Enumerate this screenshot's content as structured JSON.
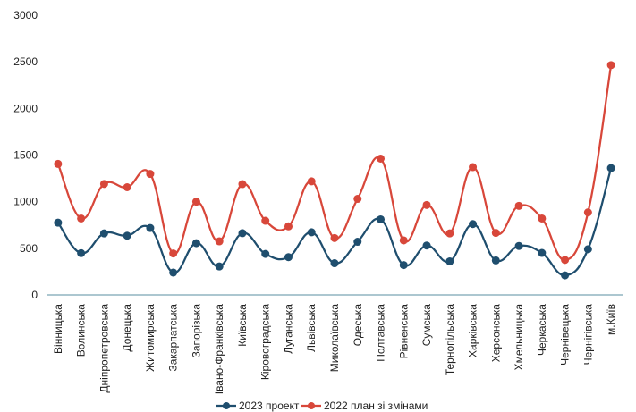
{
  "chart_data": {
    "type": "line",
    "categories": [
      "Вінницька",
      "Волинська",
      "Дніпропетровська",
      "Донецька",
      "Житомирська",
      "Закарпатська",
      "Запорізька",
      "Івано-Франківська",
      "Київська",
      "Кіровоградська",
      "Луганська",
      "Львівська",
      "Миколаївська",
      "Одеська",
      "Полтавська",
      "Рівненська",
      "Сумська",
      "Тернопільська",
      "Харківська",
      "Херсонська",
      "Хмельницька",
      "Черкаська",
      "Чернівецька",
      "Чернігівська",
      "м.Київ"
    ],
    "series": [
      {
        "name": "2023 проект",
        "color": "#1f4e6e",
        "values": [
          775,
          448,
          660,
          635,
          718,
          240,
          555,
          305,
          662,
          440,
          405,
          672,
          340,
          570,
          810,
          320,
          530,
          360,
          760,
          370,
          525,
          450,
          210,
          490,
          1360
        ]
      },
      {
        "name": "2022 план зі змінами",
        "color": "#d8473a",
        "values": [
          1405,
          820,
          1190,
          1155,
          1298,
          445,
          1000,
          575,
          1188,
          795,
          735,
          1218,
          610,
          1030,
          1462,
          585,
          965,
          660,
          1370,
          665,
          955,
          820,
          375,
          885,
          2465
        ]
      }
    ],
    "yticks": [
      "0",
      "500",
      "1000",
      "1500",
      "2000",
      "2500",
      "3000"
    ],
    "ylim": [
      0,
      3000
    ],
    "title": "",
    "xlabel": "",
    "ylabel": "",
    "grid": false,
    "legend_position": "bottom"
  }
}
